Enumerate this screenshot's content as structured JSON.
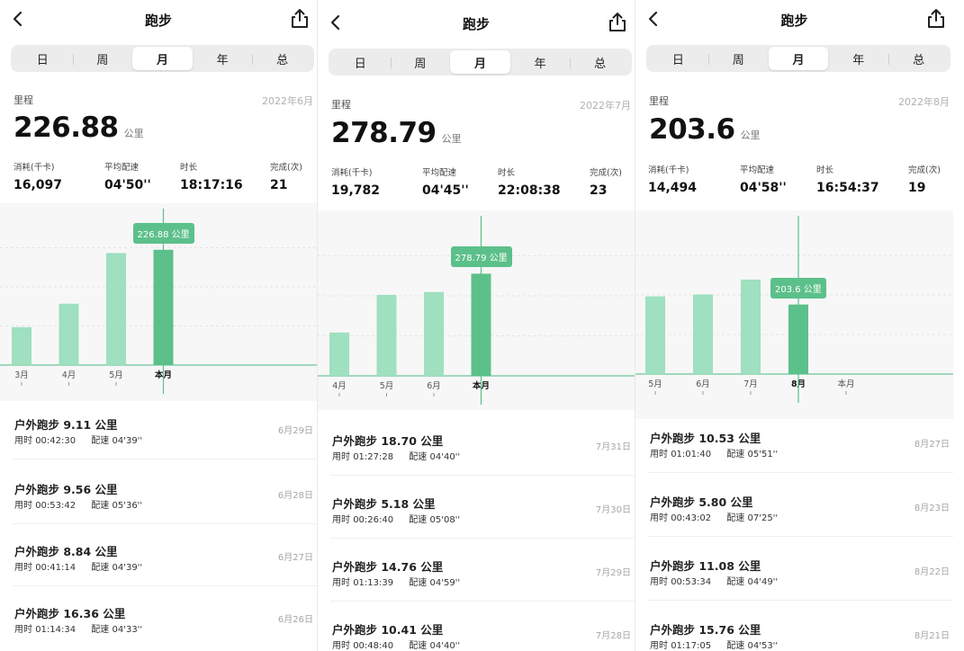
{
  "screens": [
    {
      "title": "跑步",
      "tabs": [
        "日",
        "周",
        "月",
        "年",
        "总"
      ],
      "active_tab": 2,
      "distance_label": "里程",
      "month": "2022年6月",
      "distance": "226.88",
      "distance_unit": "公里",
      "stats": [
        {
          "label": "消耗(千卡)",
          "value": "16,097"
        },
        {
          "label": "平均配速",
          "value": "04'50''"
        },
        {
          "label": "时长",
          "value": "18:17:16"
        },
        {
          "label": "完成(次)",
          "value": "21"
        }
      ],
      "chart_data": {
        "type": "bar",
        "categories": [
          "3月",
          "4月",
          "5月",
          "本月"
        ],
        "values": [
          92,
          149,
          272,
          280
        ],
        "highlight_index": 3,
        "highlight_label": "226.88 公里",
        "ylim": [
          0,
          380
        ]
      },
      "records": [
        {
          "title": "户外跑步 9.11 公里",
          "time_label": "用时",
          "time": "00:42:30",
          "pace_label": "配速",
          "pace": "04'39''",
          "date": "6月29日"
        },
        {
          "title": "户外跑步 9.56 公里",
          "time_label": "用时",
          "time": "00:53:42",
          "pace_label": "配速",
          "pace": "05'36''",
          "date": "6月28日"
        },
        {
          "title": "户外跑步 8.84 公里",
          "time_label": "用时",
          "time": "00:41:14",
          "pace_label": "配速",
          "pace": "04'39''",
          "date": "6月27日"
        },
        {
          "title": "户外跑步 16.36 公里",
          "time_label": "用时",
          "time": "01:14:34",
          "pace_label": "配速",
          "pace": "04'33''",
          "date": "6月26日"
        }
      ]
    },
    {
      "title": "跑步",
      "tabs": [
        "日",
        "周",
        "月",
        "年",
        "总"
      ],
      "active_tab": 2,
      "distance_label": "里程",
      "month": "2022年7月",
      "distance": "278.79",
      "distance_unit": "公里",
      "stats": [
        {
          "label": "消耗(千卡)",
          "value": "19,782"
        },
        {
          "label": "平均配速",
          "value": "04'45''"
        },
        {
          "label": "时长",
          "value": "22:08:38"
        },
        {
          "label": "完成(次)",
          "value": "23"
        }
      ],
      "chart_data": {
        "type": "bar",
        "categories": [
          "4月",
          "5月",
          "6月",
          "本月"
        ],
        "values": [
          92,
          172,
          178,
          217
        ],
        "highlight_index": 3,
        "highlight_label": "278.79 公里",
        "ylim": [
          0,
          340
        ]
      },
      "records": [
        {
          "title": "户外跑步 18.70 公里",
          "time_label": "用时",
          "time": "01:27:28",
          "pace_label": "配速",
          "pace": "04'40''",
          "date": "7月31日"
        },
        {
          "title": "户外跑步 5.18 公里",
          "time_label": "用时",
          "time": "00:26:40",
          "pace_label": "配速",
          "pace": "05'08''",
          "date": "7月30日"
        },
        {
          "title": "户外跑步 14.76 公里",
          "time_label": "用时",
          "time": "01:13:39",
          "pace_label": "配速",
          "pace": "04'59''",
          "date": "7月29日"
        },
        {
          "title": "户外跑步 10.41 公里",
          "time_label": "用时",
          "time": "00:48:40",
          "pace_label": "配速",
          "pace": "04'40''",
          "date": "7月28日"
        }
      ]
    },
    {
      "title": "跑步",
      "tabs": [
        "日",
        "周",
        "月",
        "年",
        "总"
      ],
      "active_tab": 2,
      "distance_label": "里程",
      "month": "2022年8月",
      "distance": "203.6",
      "distance_unit": "公里",
      "stats": [
        {
          "label": "消耗(千卡)",
          "value": "14,494"
        },
        {
          "label": "平均配速",
          "value": "04'58''"
        },
        {
          "label": "时长",
          "value": "16:54:37"
        },
        {
          "label": "完成(次)",
          "value": "19"
        }
      ],
      "chart_data": {
        "type": "bar",
        "categories": [
          "5月",
          "6月",
          "7月",
          "8月",
          "本月"
        ],
        "values": [
          162,
          166,
          197,
          145,
          null
        ],
        "highlight_index": 3,
        "highlight_label": "203.6 公里",
        "ylim": [
          0,
          330
        ]
      },
      "records": [
        {
          "title": "户外跑步 10.53 公里",
          "time_label": "用时",
          "time": "01:01:40",
          "pace_label": "配速",
          "pace": "05'51''",
          "date": "8月27日"
        },
        {
          "title": "户外跑步 5.80 公里",
          "time_label": "用时",
          "time": "00:43:02",
          "pace_label": "配速",
          "pace": "07'25''",
          "date": "8月23日"
        },
        {
          "title": "户外跑步 11.08 公里",
          "time_label": "用时",
          "time": "00:53:34",
          "pace_label": "配速",
          "pace": "04'49''",
          "date": "8月22日"
        },
        {
          "title": "户外跑步 15.76 公里",
          "time_label": "用时",
          "time": "01:17:05",
          "pace_label": "配速",
          "pace": "04'53''",
          "date": "8月21日"
        }
      ]
    }
  ],
  "colors": {
    "bar": "#9ee0bf",
    "bar_highlight": "#5cc08a",
    "cursor_line": "#5cc08a",
    "baseline": "#6cc597",
    "chart_bg": "#f7f7f7"
  }
}
